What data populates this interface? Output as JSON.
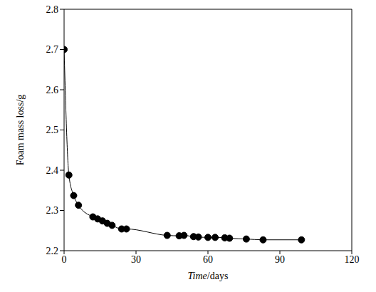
{
  "chart_data": {
    "type": "line",
    "x_label": "Time/days",
    "y_label": "Foam mass loss/g",
    "x": [
      0,
      2,
      4,
      6,
      12,
      14,
      16,
      18,
      20,
      24,
      26,
      43,
      48,
      50,
      54,
      56,
      60,
      63,
      67,
      69,
      76,
      83,
      99
    ],
    "values": [
      2.7,
      2.388,
      2.337,
      2.313,
      2.284,
      2.279,
      2.274,
      2.268,
      2.263,
      2.254,
      2.254,
      2.238,
      2.237,
      2.238,
      2.235,
      2.234,
      2.233,
      2.233,
      2.232,
      2.231,
      2.229,
      2.227,
      2.227
    ],
    "color": "#000000",
    "marker": "circle",
    "xlim": [
      0,
      120
    ],
    "ylim": [
      2.2,
      2.8
    ],
    "xticks": [
      0,
      30,
      60,
      90,
      120
    ],
    "yticks": [
      2.2,
      2.3,
      2.4,
      2.5,
      2.6,
      2.7,
      2.8
    ],
    "grid": false
  }
}
